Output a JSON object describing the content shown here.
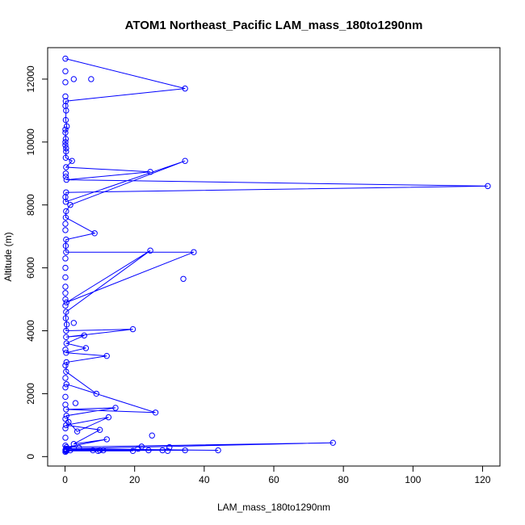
{
  "chart_data": {
    "type": "line",
    "title": "ATOM1 Northeast_Pacific LAM_mass_180to1290nm",
    "xlabel": "LAM_mass_180to1290nm",
    "ylabel": "Altitude (m)",
    "xlim": [
      -5,
      125
    ],
    "ylim": [
      -300,
      13000
    ],
    "x_ticks": [
      0,
      20,
      40,
      60,
      80,
      100,
      120
    ],
    "y_ticks": [
      0,
      2000,
      4000,
      6000,
      8000,
      10000,
      12000
    ],
    "grid": false,
    "series": [
      {
        "color": "#0000ff",
        "marker": "open-circle",
        "points": [
          [
            0.1,
            12650
          ],
          [
            34.5,
            11700
          ],
          [
            0.2,
            11300
          ],
          [
            0.3,
            11000
          ],
          [
            0.2,
            10700
          ],
          [
            0.5,
            10500
          ],
          [
            0.1,
            10300
          ],
          [
            0.2,
            10100
          ],
          [
            0.1,
            9900
          ],
          [
            0.3,
            9700
          ],
          [
            0.2,
            9500
          ],
          [
            2.0,
            9400
          ],
          [
            0.3,
            9200
          ],
          [
            24.5,
            9050
          ],
          [
            0.4,
            8800
          ],
          [
            121.5,
            8600
          ],
          [
            0.3,
            8400
          ],
          [
            0.2,
            8100
          ],
          [
            34.5,
            9400
          ],
          [
            1.5,
            8000
          ],
          [
            0.3,
            7800
          ],
          [
            0.2,
            7600
          ],
          [
            8.5,
            7100
          ],
          [
            0.3,
            6900
          ],
          [
            0.2,
            6700
          ],
          [
            0.3,
            6500
          ],
          [
            37.0,
            6500
          ],
          [
            0.4,
            4900
          ],
          [
            24.5,
            6550
          ],
          [
            0.3,
            4600
          ],
          [
            0.2,
            4400
          ],
          [
            0.5,
            4200
          ],
          [
            0.3,
            4000
          ],
          [
            19.5,
            4050
          ],
          [
            0.3,
            3800
          ],
          [
            5.5,
            3850
          ],
          [
            0.4,
            3600
          ],
          [
            6.0,
            3450
          ],
          [
            0.3,
            3300
          ],
          [
            12.0,
            3200
          ],
          [
            0.4,
            3000
          ],
          [
            0.3,
            2700
          ],
          [
            9.0,
            2000
          ],
          [
            0.4,
            2300
          ],
          [
            26.0,
            1400
          ],
          [
            0.3,
            1500
          ],
          [
            14.5,
            1550
          ],
          [
            0.4,
            1300
          ],
          [
            1.0,
            1100
          ],
          [
            3.5,
            800
          ],
          [
            12.5,
            1250
          ],
          [
            0.3,
            1000
          ],
          [
            10.0,
            850
          ],
          [
            2.5,
            400
          ],
          [
            12.0,
            550
          ],
          [
            0.4,
            300
          ],
          [
            77.0,
            440
          ],
          [
            0.3,
            250
          ],
          [
            44.0,
            200
          ],
          [
            0.4,
            230
          ],
          [
            34.5,
            200
          ],
          [
            0.3,
            200
          ],
          [
            28.0,
            200
          ],
          [
            0.4,
            180
          ],
          [
            19.5,
            180
          ],
          [
            0.2,
            180
          ]
        ],
        "extra_markers": [
          [
            7.5,
            12000
          ],
          [
            2.5,
            12000
          ],
          [
            0.1,
            12250
          ],
          [
            0.1,
            11900
          ],
          [
            0.1,
            11450
          ],
          [
            0.1,
            11150
          ],
          [
            0.1,
            10400
          ],
          [
            0.1,
            10000
          ],
          [
            0.3,
            9800
          ],
          [
            0.2,
            9000
          ],
          [
            0.2,
            8900
          ],
          [
            0.1,
            8250
          ],
          [
            0.1,
            7400
          ],
          [
            0.1,
            7200
          ],
          [
            0.1,
            6300
          ],
          [
            0.1,
            6000
          ],
          [
            34.0,
            5650
          ],
          [
            0.1,
            5700
          ],
          [
            0.1,
            5400
          ],
          [
            0.1,
            5200
          ],
          [
            0.1,
            5000
          ],
          [
            0.1,
            4800
          ],
          [
            2.5,
            4250
          ],
          [
            0.1,
            3400
          ],
          [
            0.1,
            2900
          ],
          [
            0.1,
            2500
          ],
          [
            0.1,
            2200
          ],
          [
            0.1,
            1900
          ],
          [
            3.0,
            1700
          ],
          [
            0.1,
            1650
          ],
          [
            0.1,
            1200
          ],
          [
            0.1,
            900
          ],
          [
            0.1,
            600
          ],
          [
            0.1,
            350
          ],
          [
            8.0,
            200
          ],
          [
            10.0,
            200
          ],
          [
            11.0,
            200
          ],
          [
            24.0,
            200
          ],
          [
            30.0,
            300
          ],
          [
            22.0,
            320
          ],
          [
            25.0,
            670
          ],
          [
            21.0,
            250
          ],
          [
            1.5,
            200
          ],
          [
            4.0,
            280
          ],
          [
            9.5,
            180
          ],
          [
            29.5,
            180
          ],
          [
            0.1,
            150
          ],
          [
            0.1,
            210
          ]
        ]
      }
    ]
  }
}
